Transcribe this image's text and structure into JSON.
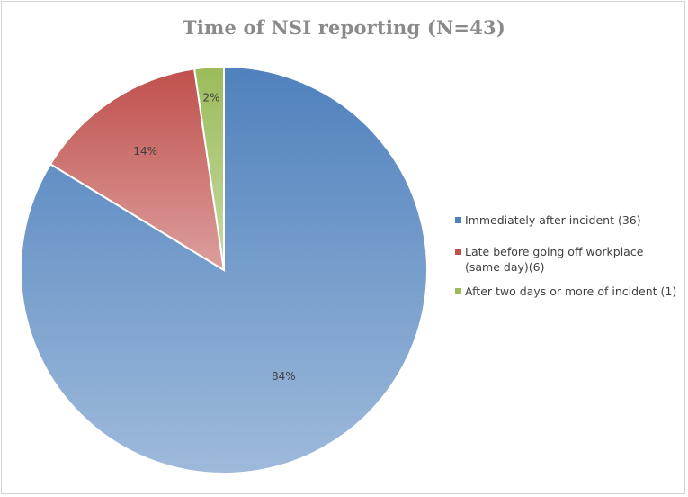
{
  "chart_data": {
    "type": "pie",
    "title": "Time of NSI reporting (N=43)",
    "slices": [
      {
        "label": "Immediately after incident (36)",
        "value": 36,
        "percent_label": "84%",
        "color": "#4f81bd"
      },
      {
        "label": "Late before going off workplace (same day)(6)",
        "value": 6,
        "percent_label": "14%",
        "color": "#c0504d"
      },
      {
        "label": "After two days or more of incident (1)",
        "value": 1,
        "percent_label": "2%",
        "color": "#9bbb59"
      }
    ],
    "legend_position": "right"
  }
}
